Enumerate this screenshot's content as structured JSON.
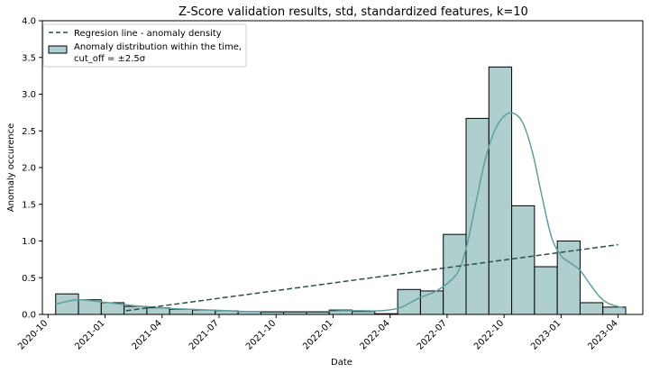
{
  "chart_data": {
    "type": "bar",
    "title": "Z-Score validation results, std, standardized features, k=10",
    "xlabel": "Date",
    "ylabel": "Anomaly occurence",
    "ylim": [
      0,
      4.0
    ],
    "y_ticks": [
      "0.0",
      "0.5",
      "1.0",
      "1.5",
      "2.0",
      "2.5",
      "3.0",
      "3.5",
      "4.0"
    ],
    "y_tick_values": [
      0,
      0.5,
      1.0,
      1.5,
      2.0,
      2.5,
      3.0,
      3.5,
      4.0
    ],
    "x_ticks": [
      "2020-10",
      "2021-01",
      "2021-04",
      "2021-07",
      "2021-10",
      "2022-01",
      "2022-04",
      "2022-07",
      "2022-10",
      "2023-01",
      "2023-04"
    ],
    "x_range_months": [
      -0.3,
      31.3
    ],
    "bin_edges_months": [
      0.4,
      1.6,
      2.8,
      4.0,
      5.2,
      6.4,
      7.6,
      8.8,
      10.0,
      11.2,
      12.4,
      13.6,
      14.8,
      16.0,
      17.2,
      18.4,
      19.6,
      20.8,
      22.0,
      23.2,
      24.4,
      25.6,
      26.8,
      28.0,
      29.2,
      30.4
    ],
    "values": [
      0.28,
      0.2,
      0.16,
      0.11,
      0.09,
      0.07,
      0.06,
      0.05,
      0.04,
      0.03,
      0.03,
      0.03,
      0.06,
      0.04,
      0.01,
      0.34,
      0.32,
      1.09,
      2.67,
      3.37,
      1.48,
      0.65,
      1.0,
      0.16,
      0.1
    ],
    "kde": {
      "x_months": [
        0.4,
        1.5,
        2.5,
        3.5,
        4.5,
        5.5,
        6.5,
        7.5,
        8.5,
        9.5,
        10.5,
        11.5,
        12.5,
        13.5,
        14.5,
        15.5,
        16.5,
        17.5,
        18.5,
        19.5,
        20.5,
        21.5,
        22.0,
        22.5,
        23.0,
        23.5,
        24.0,
        24.5,
        25.0,
        25.5,
        26.0,
        26.5,
        27.0,
        27.5,
        28.0,
        28.5,
        29.0,
        29.5,
        30.4
      ],
      "y": [
        0.14,
        0.2,
        0.18,
        0.15,
        0.12,
        0.1,
        0.08,
        0.07,
        0.06,
        0.05,
        0.04,
        0.04,
        0.04,
        0.04,
        0.04,
        0.05,
        0.05,
        0.05,
        0.09,
        0.22,
        0.33,
        0.55,
        0.9,
        1.5,
        2.1,
        2.5,
        2.7,
        2.74,
        2.6,
        2.2,
        1.6,
        1.05,
        0.8,
        0.7,
        0.6,
        0.42,
        0.25,
        0.15,
        0.08
      ]
    },
    "regression": {
      "x_months": [
        4.1,
        30.0
      ],
      "y": [
        0.05,
        0.95
      ]
    },
    "colors": {
      "bar_fill": "#afcfcf",
      "bar_edge": "#000000",
      "kde": "#5f9ea0",
      "regression": "#2f4f4f"
    },
    "legend": {
      "placement": "top-left",
      "entries": [
        {
          "label": "Regresion line - anomaly density",
          "style": "dashed-line"
        },
        {
          "label": "Anomaly distribution within the time,",
          "label2": "cut_off = ±2.5σ",
          "style": "bar"
        }
      ]
    }
  }
}
